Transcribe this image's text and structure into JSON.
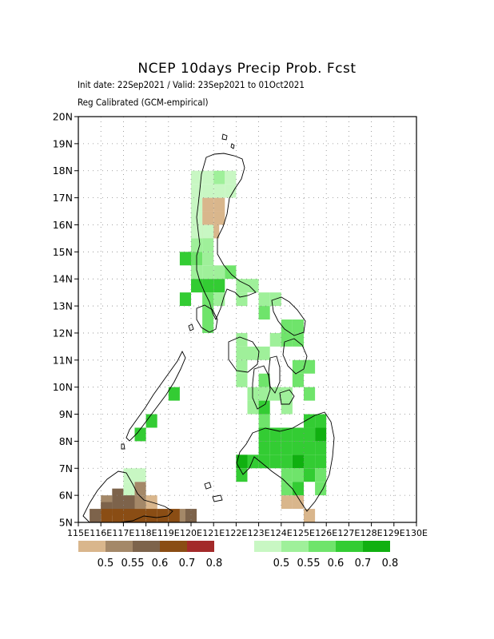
{
  "title": "NCEP 10days Precip Prob. Fcst",
  "subtitle_line1": "Init date: 22Sep2021 / Valid: 23Sep2021 to 01Oct2021",
  "subtitle_line2": "Reg Calibrated (GCM-empirical)",
  "lat_labels": [
    "20N",
    "19N",
    "18N",
    "17N",
    "16N",
    "15N",
    "14N",
    "13N",
    "12N",
    "11N",
    "10N",
    "9N",
    "8N",
    "7N",
    "6N",
    "5N"
  ],
  "lon_labels": [
    "115E",
    "116E",
    "117E",
    "118E",
    "119E",
    "120E",
    "121E",
    "122E",
    "123E",
    "124E",
    "125E",
    "126E",
    "127E",
    "128E",
    "129E",
    "130E"
  ],
  "lat_range": [
    5,
    20
  ],
  "lon_range": [
    115,
    130
  ],
  "dry_legend": {
    "colors": [
      "#d9b68c",
      "#a48868",
      "#7d634b",
      "#8a4d14",
      "#a32a2a"
    ],
    "labels": [
      "0.5",
      "0.55",
      "0.6",
      "0.7",
      "0.8"
    ]
  },
  "wet_legend": {
    "colors": [
      "#c8f7c3",
      "#9ff09a",
      "#6fe46b",
      "#33cc33",
      "#10b010"
    ],
    "labels": [
      "0.5",
      "0.55",
      "0.6",
      "0.7",
      "0.8"
    ]
  },
  "dry_cells": [
    [
      120.75,
      16.75,
      0
    ],
    [
      121.25,
      16.75,
      0
    ],
    [
      120.75,
      16.25,
      0
    ],
    [
      121.25,
      16.25,
      0
    ],
    [
      120.75,
      15.75,
      0
    ],
    [
      121.0,
      15.75,
      0
    ],
    [
      119.75,
      5.0,
      1
    ],
    [
      120.0,
      5.0,
      2
    ],
    [
      116.75,
      6.0,
      2
    ],
    [
      117.25,
      6.0,
      2
    ],
    [
      117.25,
      5.75,
      2
    ],
    [
      116.75,
      5.75,
      2
    ],
    [
      116.25,
      5.75,
      1
    ],
    [
      116.75,
      5.5,
      2
    ],
    [
      117.25,
      5.5,
      2
    ],
    [
      116.25,
      5.5,
      2
    ],
    [
      117.75,
      5.5,
      0
    ],
    [
      118.25,
      5.5,
      0
    ],
    [
      117.75,
      5.75,
      1
    ],
    [
      117.75,
      6.25,
      1
    ],
    [
      118.25,
      5.75,
      0
    ],
    [
      116.25,
      5.0,
      3
    ],
    [
      116.75,
      5.0,
      3
    ],
    [
      117.25,
      5.0,
      3
    ],
    [
      117.75,
      5.0,
      3
    ],
    [
      118.25,
      5.0,
      3
    ],
    [
      118.75,
      5.0,
      3
    ],
    [
      119.25,
      5.0,
      3
    ],
    [
      124.25,
      5.75,
      0
    ],
    [
      124.75,
      5.75,
      0
    ],
    [
      125.25,
      5.25,
      0
    ],
    [
      115.75,
      5.0,
      2
    ]
  ],
  "wet_cells": [
    [
      120.25,
      17.75,
      0
    ],
    [
      120.75,
      17.75,
      0
    ],
    [
      121.25,
      17.75,
      1
    ],
    [
      121.75,
      17.75,
      0
    ],
    [
      120.25,
      17.25,
      0
    ],
    [
      120.75,
      17.25,
      0
    ],
    [
      121.25,
      17.25,
      0
    ],
    [
      121.75,
      17.25,
      0
    ],
    [
      120.25,
      16.75,
      0
    ],
    [
      120.25,
      16.25,
      0
    ],
    [
      120.25,
      15.75,
      0
    ],
    [
      120.75,
      15.75,
      0
    ],
    [
      120.25,
      15.25,
      1
    ],
    [
      120.75,
      15.25,
      1
    ],
    [
      119.75,
      14.75,
      3
    ],
    [
      120.25,
      14.75,
      2
    ],
    [
      120.75,
      14.75,
      1
    ],
    [
      120.25,
      14.25,
      1
    ],
    [
      120.75,
      14.25,
      1
    ],
    [
      121.25,
      14.25,
      1
    ],
    [
      121.75,
      14.25,
      2
    ],
    [
      120.25,
      13.75,
      3
    ],
    [
      120.75,
      13.75,
      3
    ],
    [
      121.25,
      13.75,
      3
    ],
    [
      122.25,
      13.75,
      1
    ],
    [
      122.75,
      13.75,
      1
    ],
    [
      119.75,
      13.25,
      3
    ],
    [
      120.75,
      13.25,
      2
    ],
    [
      121.25,
      13.25,
      1
    ],
    [
      122.25,
      13.25,
      1
    ],
    [
      123.25,
      13.25,
      1
    ],
    [
      123.75,
      13.25,
      1
    ],
    [
      123.25,
      12.75,
      2
    ],
    [
      120.75,
      12.75,
      2
    ],
    [
      120.75,
      12.25,
      2
    ],
    [
      124.25,
      12.25,
      2
    ],
    [
      124.75,
      12.25,
      2
    ],
    [
      123.75,
      11.75,
      1
    ],
    [
      124.25,
      11.75,
      2
    ],
    [
      124.75,
      11.75,
      2
    ],
    [
      122.25,
      11.75,
      1
    ],
    [
      122.25,
      11.25,
      1
    ],
    [
      122.75,
      11.25,
      1
    ],
    [
      123.25,
      11.25,
      1
    ],
    [
      122.25,
      10.75,
      1
    ],
    [
      124.75,
      10.75,
      2
    ],
    [
      125.25,
      10.75,
      2
    ],
    [
      123.25,
      10.25,
      2
    ],
    [
      124.75,
      10.25,
      2
    ],
    [
      122.25,
      10.25,
      1
    ],
    [
      123.25,
      9.75,
      1
    ],
    [
      122.75,
      9.75,
      1
    ],
    [
      123.75,
      9.75,
      1
    ],
    [
      124.25,
      9.75,
      1
    ],
    [
      125.25,
      9.75,
      2
    ],
    [
      122.75,
      9.25,
      1
    ],
    [
      123.25,
      9.25,
      3
    ],
    [
      124.25,
      9.25,
      1
    ],
    [
      123.25,
      8.75,
      2
    ],
    [
      125.25,
      8.75,
      3
    ],
    [
      125.75,
      8.75,
      3
    ],
    [
      125.75,
      8.25,
      4
    ],
    [
      123.25,
      8.25,
      3
    ],
    [
      123.75,
      8.25,
      3
    ],
    [
      124.25,
      8.25,
      3
    ],
    [
      124.75,
      8.25,
      3
    ],
    [
      125.25,
      8.25,
      3
    ],
    [
      125.75,
      7.75,
      3
    ],
    [
      124.25,
      7.75,
      3
    ],
    [
      124.75,
      7.75,
      3
    ],
    [
      125.25,
      7.75,
      3
    ],
    [
      123.25,
      7.75,
      3
    ],
    [
      123.75,
      7.75,
      3
    ],
    [
      122.25,
      7.25,
      4
    ],
    [
      122.25,
      6.75,
      3
    ],
    [
      122.75,
      7.25,
      3
    ],
    [
      123.25,
      7.25,
      3
    ],
    [
      123.75,
      7.25,
      3
    ],
    [
      124.25,
      7.25,
      3
    ],
    [
      124.75,
      7.25,
      4
    ],
    [
      125.25,
      7.25,
      3
    ],
    [
      125.75,
      7.25,
      3
    ],
    [
      124.25,
      6.75,
      2
    ],
    [
      124.75,
      6.75,
      2
    ],
    [
      125.25,
      6.75,
      3
    ],
    [
      125.75,
      6.75,
      2
    ],
    [
      124.25,
      6.25,
      2
    ],
    [
      124.75,
      6.25,
      3
    ],
    [
      125.75,
      6.25,
      2
    ],
    [
      117.25,
      6.25,
      0
    ],
    [
      117.75,
      6.75,
      0
    ],
    [
      117.25,
      6.75,
      0
    ],
    [
      117.75,
      8.25,
      3
    ],
    [
      118.25,
      8.75,
      3
    ],
    [
      119.25,
      9.75,
      3
    ]
  ]
}
